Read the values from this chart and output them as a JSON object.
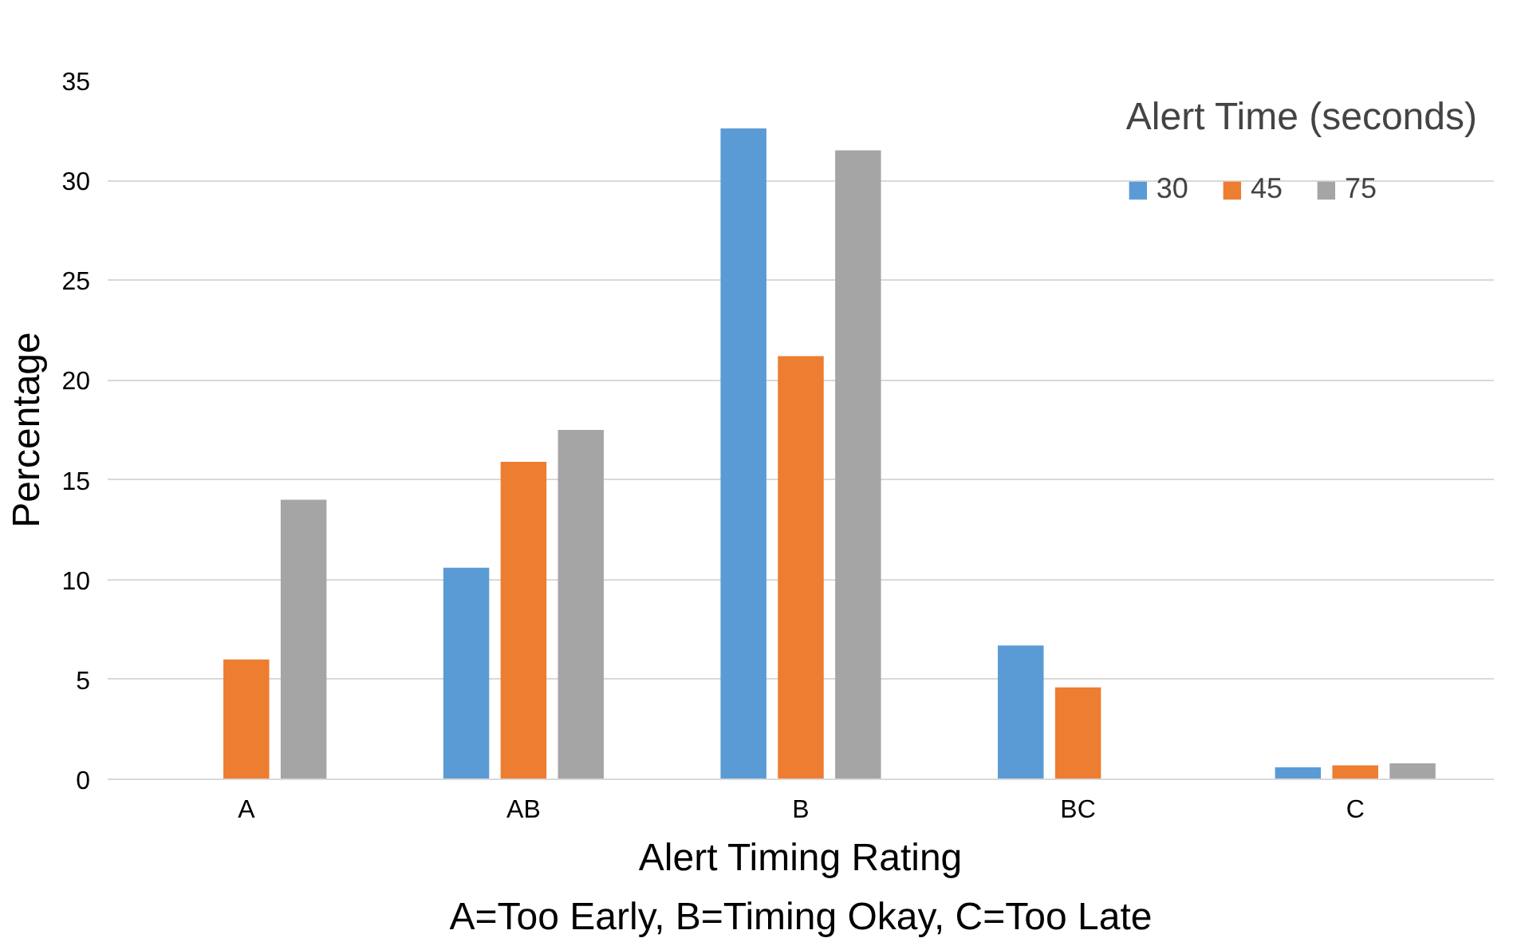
{
  "chart_data": {
    "type": "bar",
    "categories": [
      "A",
      "AB",
      "B",
      "BC",
      "C"
    ],
    "xlabel": "Alert Timing Rating",
    "ylabel": "Percentage",
    "legend_title": "Alert Time (seconds)",
    "annotations": [
      "A=Too Early, B=Timing Okay, C=Too Late"
    ],
    "series": [
      {
        "name": "30",
        "color": "#5b9bd5",
        "values": [
          0,
          10.6,
          32.6,
          6.7,
          0.6
        ]
      },
      {
        "name": "45",
        "color": "#ed7d31",
        "values": [
          6.0,
          15.9,
          21.2,
          4.6,
          0.7
        ]
      },
      {
        "name": "75",
        "color": "#a5a5a5",
        "values": [
          14.0,
          17.5,
          31.5,
          0,
          0.8
        ]
      }
    ],
    "ylim": [
      0,
      35
    ],
    "yticks": [
      0,
      5,
      10,
      15,
      20,
      25,
      30,
      35
    ],
    "grid": "y",
    "legend": "top right"
  }
}
